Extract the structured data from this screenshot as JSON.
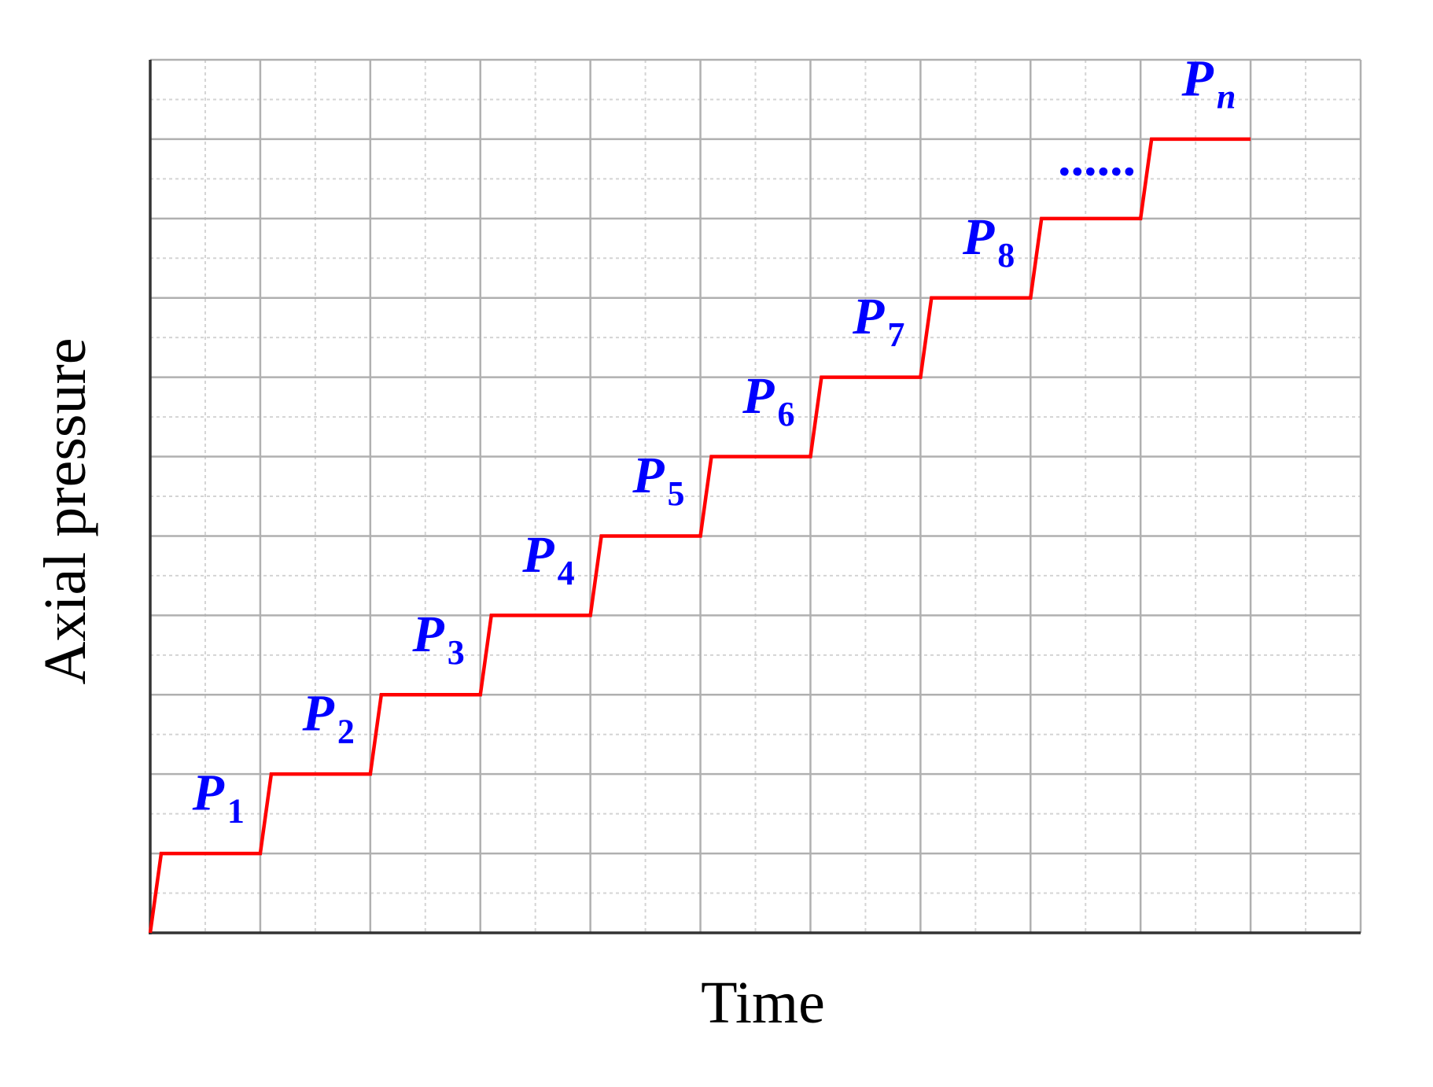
{
  "chart_data": {
    "type": "line",
    "x_label": "Time",
    "y_label": "Axial pressure",
    "xlim": [
      0,
      11
    ],
    "ylim": [
      0,
      11
    ],
    "xticks": [
      0,
      1,
      2,
      3,
      4,
      5,
      6,
      7,
      8,
      9,
      10,
      11
    ],
    "yticks": [
      0,
      1,
      2,
      3,
      4,
      5,
      6,
      7,
      8,
      9,
      10,
      11
    ],
    "grid": true,
    "minor_grid": true,
    "series": [
      {
        "color": "#ff0000",
        "x": [
          0,
          0.1,
          1,
          1.1,
          2,
          2.1,
          3,
          3.1,
          4,
          4.1,
          5,
          5.1,
          6,
          6.1,
          7,
          7.1,
          8,
          8.1,
          9,
          9.1,
          10
        ],
        "values": [
          0,
          1,
          1,
          2,
          2,
          3,
          3,
          4,
          4,
          5,
          5,
          6,
          6,
          7,
          7,
          8,
          8,
          9,
          9,
          10,
          10
        ]
      }
    ],
    "annotation_color": "#0000ff",
    "annotations": [
      {
        "text": "P",
        "sub": "1"
      },
      {
        "text": "P",
        "sub": "2"
      },
      {
        "text": "P",
        "sub": "3"
      },
      {
        "text": "P",
        "sub": "4"
      },
      {
        "text": "P",
        "sub": "5"
      },
      {
        "text": "P",
        "sub": "6"
      },
      {
        "text": "P",
        "sub": "7"
      },
      {
        "text": "P",
        "sub": "8"
      },
      {
        "text": "......"
      },
      {
        "text": "P",
        "sub": "n"
      }
    ]
  }
}
